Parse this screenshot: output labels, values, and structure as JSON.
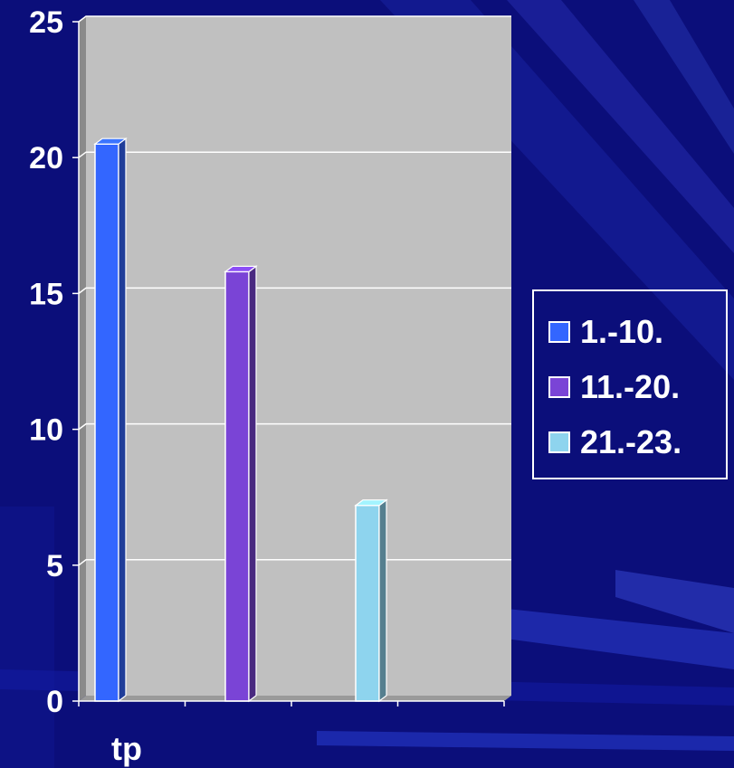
{
  "chart_data": {
    "type": "bar",
    "categories": [
      "tp"
    ],
    "series": [
      {
        "name": "1.-10.",
        "values": [
          20.5
        ],
        "color": "#3366ff"
      },
      {
        "name": "11.-20.",
        "values": [
          15.8
        ],
        "color": "#7a44d6"
      },
      {
        "name": "21.-23.",
        "values": [
          7.2
        ],
        "color": "#8ed4ee"
      }
    ],
    "ylim": [
      0,
      25
    ],
    "yticks": [
      "0",
      "5",
      "10",
      "15",
      "20",
      "25"
    ],
    "grid": true,
    "legend_position": "right",
    "plot_background": "#c0c0c0",
    "background_color": "#0b0e7a"
  }
}
